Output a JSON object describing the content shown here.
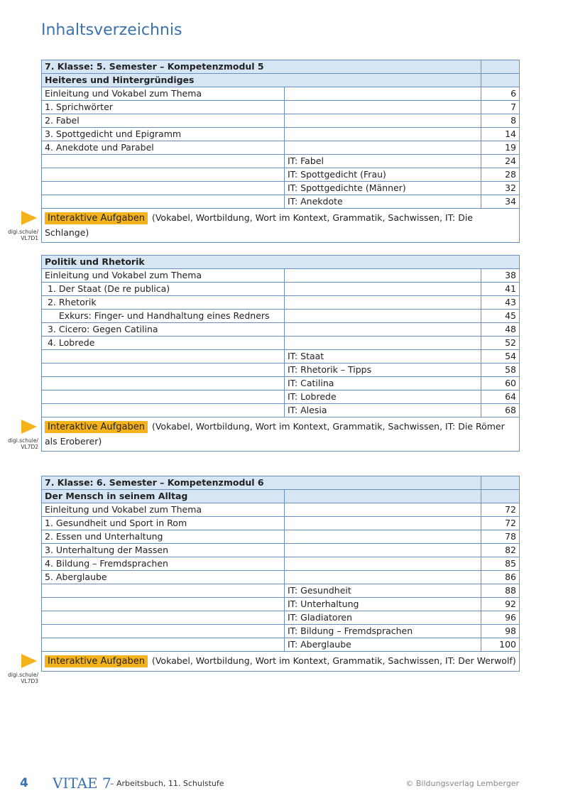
{
  "title": "Inhaltsverzeichnis",
  "sections": [
    {
      "header": "7. Klasse: 5. Semester – Kompetenzmodul 5",
      "subheader": "Heiteres und Hintergründiges",
      "rows": [
        [
          "Einleitung und Vokabel zum Thema",
          "",
          "6"
        ],
        [
          "1. Sprichwörter",
          "",
          "7"
        ],
        [
          "2. Fabel",
          "",
          "8"
        ],
        [
          "3. Spottgedicht und Epigramm",
          "",
          "14"
        ],
        [
          "4. Anekdote und Parabel",
          "",
          "19"
        ],
        [
          "",
          "IT: Fabel",
          "24"
        ],
        [
          "",
          "IT: Spottgedicht (Frau)",
          "28"
        ],
        [
          "",
          "IT: Spottgedichte (Männer)",
          "32"
        ],
        [
          "",
          "IT: Anekdote",
          "34"
        ]
      ],
      "interactive_label": "Interaktive Aufgaben",
      "interactive_text": "(Vokabel, Wortbildung, Wort im Kontext, Grammatik, Sachwissen, IT: Die Schlange)",
      "code": [
        "digi.schule/",
        "VL7D1"
      ]
    },
    {
      "header": "",
      "subheader": "Politik und Rhetorik",
      "rows": [
        [
          "Einleitung und Vokabel zum Thema",
          "",
          "38"
        ],
        [
          " 1. Der Staat (De re publica)",
          "",
          "41"
        ],
        [
          " 2. Rhetorik",
          "",
          "43"
        ],
        [
          "     Exkurs: Finger- und Handhaltung eines Redners",
          "",
          "45"
        ],
        [
          " 3. Cicero: Gegen Catilina",
          "",
          "48"
        ],
        [
          " 4. Lobrede",
          "",
          "52"
        ],
        [
          "",
          "IT: Staat",
          "54"
        ],
        [
          "",
          "IT: Rhetorik – Tipps",
          "58"
        ],
        [
          "",
          "IT: Catilina",
          "60"
        ],
        [
          "",
          "IT: Lobrede",
          "64"
        ],
        [
          "",
          "IT: Alesia",
          "68"
        ]
      ],
      "interactive_label": "Interaktive Aufgaben",
      "interactive_text": "(Vokabel, Wortbildung, Wort im Kontext, Grammatik, Sachwissen, IT: Die Römer als Eroberer)",
      "code": [
        "digi.schule/",
        "VL7D2"
      ]
    },
    {
      "header": "7. Klasse: 6. Semester – Kompetenzmodul 6",
      "subheader": "Der Mensch in seinem Alltag",
      "rows": [
        [
          "Einleitung und Vokabel zum Thema",
          "",
          "72"
        ],
        [
          "1. Gesundheit und Sport in Rom",
          "",
          "72"
        ],
        [
          "2. Essen und Unterhaltung",
          "",
          "78"
        ],
        [
          "3. Unterhaltung der Massen",
          "",
          "82"
        ],
        [
          "4. Bildung – Fremdsprachen",
          "",
          "85"
        ],
        [
          "5. Aberglaube",
          "",
          "86"
        ],
        [
          "",
          "IT: Gesundheit",
          "88"
        ],
        [
          "",
          "IT: Unterhaltung",
          "92"
        ],
        [
          "",
          "IT: Gladiatoren",
          "96"
        ],
        [
          "",
          "IT: Bildung – Fremdsprachen",
          "98"
        ],
        [
          "",
          "IT: Aberglaube",
          "100"
        ]
      ],
      "interactive_label": "Interaktive Aufgaben",
      "interactive_text": "(Vokabel, Wortbildung, Wort im Kontext, Grammatik, Sachwissen, IT: Der Werwolf)",
      "code": [
        "digi.schule/",
        "VL7D3"
      ]
    }
  ],
  "footer": {
    "page": "4",
    "book": "VITAE 7",
    "subtitle": "– Arbeitsbuch, 11. Schulstufe",
    "publisher": "© Bildungsverlag Lemberger"
  },
  "colors": {
    "accent": "#3a72b0",
    "highlight": "#f5b31b",
    "header_bg": "#d6e6f5"
  }
}
